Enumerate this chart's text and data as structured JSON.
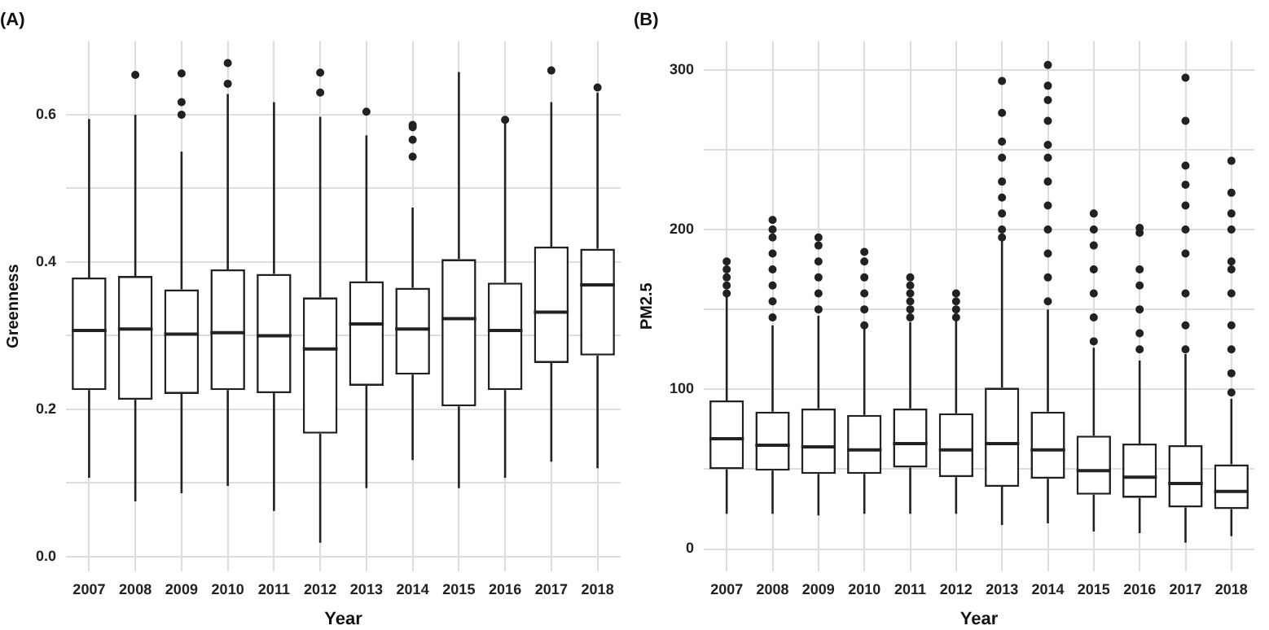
{
  "chart_data": [
    {
      "type": "box",
      "title": "(A)",
      "xlabel": "Year",
      "ylabel": "Greenness",
      "grid": true,
      "legend": false,
      "marker": "circle",
      "color": "#222222",
      "categories": [
        "2007",
        "2008",
        "2009",
        "2010",
        "2011",
        "2012",
        "2013",
        "2014",
        "2015",
        "2016",
        "2017",
        "2018"
      ],
      "ylim": [
        -0.02,
        0.7
      ],
      "yticks": [
        {
          "value": 0,
          "label": "0.0"
        },
        {
          "value": 0.1,
          "label": null
        },
        0.2,
        {
          "value": 0.3,
          "label": null
        },
        0.4,
        {
          "value": 0.5,
          "label": null
        },
        0.6
      ],
      "boxes": [
        {
          "low": 0.107,
          "q1": 0.226,
          "median": 0.307,
          "q3": 0.379,
          "high": 0.594
        },
        {
          "low": 0.075,
          "q1": 0.213,
          "median": 0.309,
          "q3": 0.381,
          "high": 0.6,
          "outliers": [
            0.654
          ]
        },
        {
          "low": 0.086,
          "q1": 0.221,
          "median": 0.302,
          "q3": 0.363,
          "high": 0.55,
          "outliers": [
            0.6,
            0.617,
            0.656
          ]
        },
        {
          "low": 0.096,
          "q1": 0.226,
          "median": 0.304,
          "q3": 0.39,
          "high": 0.628,
          "outliers": [
            0.642,
            0.67
          ]
        },
        {
          "low": 0.062,
          "q1": 0.222,
          "median": 0.3,
          "q3": 0.384,
          "high": 0.617
        },
        {
          "low": 0.019,
          "q1": 0.167,
          "median": 0.282,
          "q3": 0.352,
          "high": 0.597,
          "outliers": [
            0.63,
            0.657
          ]
        },
        {
          "low": 0.093,
          "q1": 0.232,
          "median": 0.316,
          "q3": 0.374,
          "high": 0.572,
          "outliers": [
            0.604
          ]
        },
        {
          "low": 0.131,
          "q1": 0.247,
          "median": 0.309,
          "q3": 0.365,
          "high": 0.474,
          "outliers": [
            0.543,
            0.566,
            0.583,
            0.586
          ]
        },
        {
          "low": 0.093,
          "q1": 0.204,
          "median": 0.323,
          "q3": 0.404,
          "high": 0.658
        },
        {
          "low": 0.107,
          "q1": 0.226,
          "median": 0.307,
          "q3": 0.372,
          "high": 0.59,
          "outliers": [
            0.593
          ]
        },
        {
          "low": 0.129,
          "q1": 0.263,
          "median": 0.332,
          "q3": 0.421,
          "high": 0.617,
          "outliers": [
            0.66
          ]
        },
        {
          "low": 0.12,
          "q1": 0.273,
          "median": 0.369,
          "q3": 0.418,
          "high": 0.63,
          "outliers": [
            0.637
          ]
        }
      ]
    },
    {
      "type": "box",
      "title": "(B)",
      "xlabel": "Year",
      "ylabel": "PM2.5",
      "grid": true,
      "legend": false,
      "marker": "circle",
      "color": "#222222",
      "categories": [
        "2007",
        "2008",
        "2009",
        "2010",
        "2011",
        "2012",
        "2013",
        "2014",
        "2015",
        "2016",
        "2017",
        "2018"
      ],
      "ylim": [
        -14,
        318
      ],
      "yticks": [
        0,
        {
          "value": 50,
          "label": null
        },
        100,
        {
          "value": 150,
          "label": null
        },
        200,
        {
          "value": 250,
          "label": null
        },
        300
      ],
      "boxes": [
        {
          "low": 22,
          "q1": 50,
          "median": 69,
          "q3": 93,
          "high": 158,
          "outliers": [
            160,
            165,
            170,
            175,
            180
          ]
        },
        {
          "low": 22,
          "q1": 49,
          "median": 65,
          "q3": 86,
          "high": 140,
          "outliers": [
            145,
            155,
            165,
            175,
            185,
            195,
            200,
            206
          ]
        },
        {
          "low": 21,
          "q1": 47,
          "median": 64,
          "q3": 88,
          "high": 146,
          "outliers": [
            150,
            160,
            170,
            180,
            190,
            195
          ]
        },
        {
          "low": 22,
          "q1": 47,
          "median": 62,
          "q3": 84,
          "high": 138,
          "outliers": [
            140,
            150,
            160,
            170,
            180,
            186
          ]
        },
        {
          "low": 22,
          "q1": 51,
          "median": 66,
          "q3": 88,
          "high": 142,
          "outliers": [
            145,
            150,
            155,
            160,
            165,
            170
          ]
        },
        {
          "low": 22,
          "q1": 45,
          "median": 62,
          "q3": 85,
          "high": 143,
          "outliers": [
            145,
            150,
            155,
            160
          ]
        },
        {
          "low": 15,
          "q1": 39,
          "median": 66,
          "q3": 101,
          "high": 194,
          "outliers": [
            195,
            200,
            210,
            220,
            230,
            245,
            255,
            273,
            293
          ]
        },
        {
          "low": 16,
          "q1": 44,
          "median": 62,
          "q3": 86,
          "high": 150,
          "outliers": [
            155,
            170,
            185,
            200,
            215,
            230,
            245,
            253,
            268,
            281,
            290,
            303
          ]
        },
        {
          "low": 11,
          "q1": 34,
          "median": 49,
          "q3": 71,
          "high": 126,
          "outliers": [
            130,
            145,
            160,
            175,
            190,
            200,
            210
          ]
        },
        {
          "low": 10,
          "q1": 32,
          "median": 45,
          "q3": 66,
          "high": 118,
          "outliers": [
            125,
            135,
            150,
            165,
            175,
            198,
            201
          ]
        },
        {
          "low": 4,
          "q1": 26,
          "median": 41,
          "q3": 65,
          "high": 122,
          "outliers": [
            125,
            140,
            160,
            185,
            200,
            215,
            228,
            240,
            268,
            295
          ]
        },
        {
          "low": 8,
          "q1": 25,
          "median": 36,
          "q3": 53,
          "high": 94,
          "outliers": [
            98,
            110,
            125,
            140,
            160,
            175,
            180,
            200,
            210,
            223,
            243
          ]
        }
      ]
    }
  ]
}
